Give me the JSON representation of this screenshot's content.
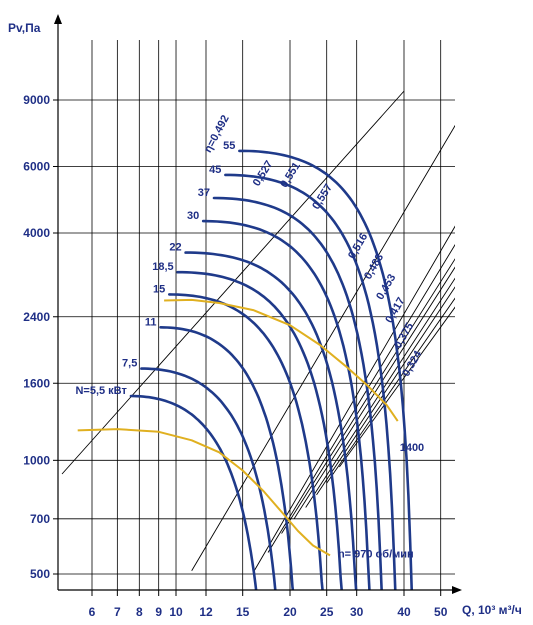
{
  "chart_data": {
    "type": "line",
    "xlabel": "Q, 10³ м³/ч",
    "ylabel": "Pv,Па",
    "x_ticks": [
      6,
      7,
      8,
      9,
      10,
      12,
      15,
      20,
      25,
      30,
      40,
      50
    ],
    "y_ticks": [
      500,
      700,
      1000,
      1600,
      2400,
      4000,
      6000,
      9000
    ],
    "x_scale": "log",
    "y_scale": "log",
    "grid": true,
    "power_prefix": "N=",
    "power_unit": " кВт",
    "power_labels": [
      "5,5",
      "7,5",
      "11",
      "15",
      "18,5",
      "22",
      "30",
      "37",
      "45",
      "55"
    ],
    "efficiency_prefix": "η=",
    "efficiency_labels": [
      "0,492",
      "0,527",
      "0,551",
      "0,557",
      "0,516",
      "0,483",
      "0,453",
      "0,417",
      "0,375",
      "0,324"
    ],
    "series": [
      {
        "name": "n= 970 об/мин",
        "color": "#e0b020",
        "points": [
          [
            5.5,
            1200
          ],
          [
            7,
            1210
          ],
          [
            9,
            1190
          ],
          [
            11,
            1130
          ],
          [
            13,
            1050
          ],
          [
            15,
            940
          ],
          [
            17,
            830
          ],
          [
            19,
            730
          ],
          [
            21,
            650
          ],
          [
            23,
            595
          ],
          [
            25.5,
            560
          ]
        ]
      },
      {
        "name": "1400",
        "color": "#e0b020",
        "points": [
          [
            9.3,
            2650
          ],
          [
            11,
            2660
          ],
          [
            13,
            2610
          ],
          [
            16,
            2500
          ],
          [
            20,
            2280
          ],
          [
            24,
            2020
          ],
          [
            28,
            1780
          ],
          [
            32,
            1580
          ],
          [
            36,
            1400
          ],
          [
            38.5,
            1270
          ]
        ]
      }
    ],
    "iso_efficiency_lines": [
      [
        [
          5,
          920
        ],
        [
          40,
          9500
        ]
      ],
      [
        [
          11,
          510
        ],
        [
          55,
          7800
        ]
      ],
      [
        [
          16,
          505
        ],
        [
          75,
          7200
        ]
      ],
      [
        [
          17.5,
          570
        ],
        [
          80,
          7000
        ]
      ],
      [
        [
          19,
          640
        ],
        [
          85,
          6900
        ]
      ],
      [
        [
          20.5,
          700
        ],
        [
          85,
          6500
        ]
      ],
      [
        [
          22,
          750
        ],
        [
          85,
          6000
        ]
      ],
      [
        [
          23.5,
          810
        ],
        [
          85,
          5600
        ]
      ],
      [
        [
          25,
          870
        ],
        [
          85,
          5100
        ]
      ],
      [
        [
          27,
          960
        ],
        [
          85,
          4700
        ]
      ]
    ],
    "pressure_curves": [
      {
        "Q0": 7.6,
        "P0": 1480,
        "Qz": 16.5
      },
      {
        "Q0": 8.1,
        "P0": 1750,
        "Qz": 18.5
      },
      {
        "Q0": 9.1,
        "P0": 2250,
        "Qz": 20.5
      },
      {
        "Q0": 9.6,
        "P0": 2750,
        "Qz": 24.5
      },
      {
        "Q0": 10.1,
        "P0": 3150,
        "Qz": 27.5
      },
      {
        "Q0": 10.6,
        "P0": 3550,
        "Qz": 30
      },
      {
        "Q0": 11.8,
        "P0": 4300,
        "Qz": 32.5
      },
      {
        "Q0": 12.6,
        "P0": 4950,
        "Qz": 35
      },
      {
        "Q0": 13.5,
        "P0": 5700,
        "Qz": 38
      },
      {
        "Q0": 14.7,
        "P0": 6600,
        "Qz": 42
      }
    ]
  }
}
